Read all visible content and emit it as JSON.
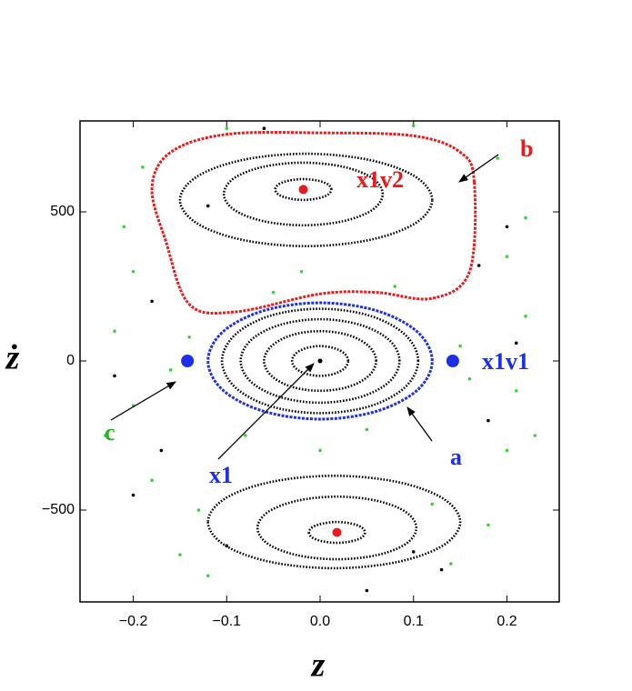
{
  "chart_data": {
    "type": "scatter",
    "x_label": "z",
    "y_label": "ż",
    "xlim": [
      -0.257,
      0.256
    ],
    "ylim": [
      -808,
      805
    ],
    "xticks": [
      {
        "value": -0.2,
        "label": "−0.2"
      },
      {
        "value": -0.1,
        "label": "−0.1"
      },
      {
        "value": 0,
        "label": "0.0"
      },
      0.1,
      0.2
    ],
    "yticks": [
      {
        "value": -500,
        "label": "−500"
      },
      0,
      500
    ],
    "annotations": [
      {
        "text": "b",
        "color": "#e81c1c"
      },
      {
        "text": "x1v2",
        "color": "#e81c1c"
      },
      {
        "text": "x1v1",
        "color": "#1c2ee8"
      },
      {
        "text": "a",
        "color": "#1c2ee8"
      },
      {
        "text": "x1",
        "color": "#1c2ee8"
      },
      {
        "text": "c",
        "color": "#22b422"
      }
    ],
    "series": [
      {
        "mode": "points",
        "color": "#3ad33a",
        "x": [
          -0.2,
          -0.22,
          -0.2,
          -0.18,
          -0.15,
          -0.12,
          0.2,
          0.22,
          0.21,
          0.2,
          0.18,
          0.14,
          -0.19,
          0.19,
          -0.14,
          -0.16,
          0.15,
          0.16,
          -0.05,
          0.05,
          -0.08,
          0.08,
          -0.1,
          0.1,
          -0.23,
          0.23,
          -0.13,
          0.12,
          -0.21,
          0.22,
          0,
          -0.02
        ],
        "values": [
          300,
          100,
          -150,
          -400,
          -650,
          -720,
          350,
          150,
          -100,
          -300,
          -550,
          -680,
          650,
          680,
          80,
          -30,
          50,
          -60,
          230,
          -230,
          -250,
          250,
          780,
          790,
          -250,
          -250,
          -500,
          -480,
          450,
          480,
          -300,
          300
        ]
      },
      {
        "mode": "points",
        "color": "#000000",
        "x": [
          -0.18,
          0.18,
          -0.1,
          0.1,
          -0.22,
          0.21,
          -0.17,
          0.17,
          -0.12,
          0.13,
          -0.2,
          0.2,
          -0.06,
          0.05
        ],
        "values": [
          200,
          -200,
          -620,
          -640,
          -50,
          60,
          -300,
          320,
          520,
          -700,
          -450,
          450,
          780,
          -770
        ]
      },
      {
        "mode": "line",
        "color": "#000000",
        "x": [
          0.03,
          0.026,
          0.015,
          0,
          -0.015,
          -0.026,
          -0.03,
          -0.026,
          -0.015,
          0,
          0.015,
          0.026
        ],
        "values": [
          0,
          25,
          43,
          50,
          43,
          25,
          0,
          -25,
          -43,
          -50,
          -43,
          -25
        ]
      },
      {
        "mode": "line",
        "color": "#000000",
        "x": [
          0.06,
          0.052,
          0.03,
          0,
          -0.03,
          -0.052,
          -0.06,
          -0.052,
          -0.03,
          0,
          0.03,
          0.052
        ],
        "values": [
          0,
          50,
          87,
          100,
          87,
          50,
          0,
          -50,
          -87,
          -100,
          -87,
          -50
        ]
      },
      {
        "mode": "line",
        "color": "#000000",
        "x": [
          0.085,
          0.074,
          0.043,
          0,
          -0.043,
          -0.074,
          -0.085,
          -0.074,
          -0.043,
          0,
          0.043,
          0.074
        ],
        "values": [
          0,
          70,
          121,
          140,
          121,
          70,
          0,
          -70,
          -121,
          -140,
          -121,
          -70
        ]
      },
      {
        "mode": "line",
        "color": "#000000",
        "x": [
          0.105,
          0.091,
          0.053,
          0,
          -0.053,
          -0.091,
          -0.105,
          -0.091,
          -0.053,
          0,
          0.053,
          0.091
        ],
        "values": [
          0,
          88,
          152,
          175,
          152,
          88,
          0,
          -88,
          -152,
          -175,
          -152,
          -88
        ]
      },
      {
        "mode": "line",
        "color": "#1c2ee8",
        "x": [
          0.12,
          0.104,
          0.06,
          0,
          -0.06,
          -0.104,
          -0.12,
          -0.104,
          -0.06,
          0,
          0.06,
          0.104
        ],
        "values": [
          0,
          98,
          169,
          195,
          169,
          98,
          0,
          -98,
          -169,
          -195,
          -169,
          -98
        ]
      },
      {
        "mode": "line",
        "color": "#000000",
        "x": [
          0.012,
          0.008,
          -0.003,
          -0.018,
          -0.033,
          -0.044,
          -0.048,
          -0.044,
          -0.033,
          -0.018,
          -0.003,
          0.008
        ],
        "values": [
          575,
          593,
          605,
          610,
          605,
          593,
          575,
          557,
          545,
          540,
          545,
          557
        ]
      },
      {
        "mode": "line",
        "color": "#000000",
        "x": [
          0.067,
          0.056,
          0.025,
          -0.018,
          -0.061,
          -0.092,
          -0.103,
          -0.092,
          -0.061,
          -0.018,
          0.025,
          0.056
        ],
        "values": [
          560,
          613,
          651,
          665,
          651,
          613,
          560,
          507,
          469,
          455,
          469,
          507
        ]
      },
      {
        "mode": "line",
        "color": "#000000",
        "x": [
          0.12,
          0.102,
          0.053,
          -0.015,
          -0.083,
          -0.132,
          -0.15,
          -0.132,
          -0.083,
          -0.015,
          0.053,
          0.102
        ],
        "values": [
          540,
          618,
          674,
          695,
          674,
          618,
          540,
          462,
          406,
          385,
          406,
          462
        ]
      },
      {
        "mode": "line",
        "color": "#000000",
        "x": [
          -0.012,
          -0.008,
          0.003,
          0.018,
          0.033,
          0.044,
          0.048,
          0.044,
          0.033,
          0.018,
          0.003,
          -0.008
        ],
        "values": [
          -575,
          -593,
          -605,
          -610,
          -605,
          -593,
          -575,
          -557,
          -545,
          -540,
          -545,
          -557
        ]
      },
      {
        "mode": "line",
        "color": "#000000",
        "x": [
          -0.067,
          -0.056,
          -0.025,
          0.018,
          0.061,
          0.092,
          0.103,
          0.092,
          0.061,
          0.018,
          -0.025,
          -0.056
        ],
        "values": [
          -560,
          -613,
          -651,
          -665,
          -651,
          -613,
          -560,
          -507,
          -469,
          -455,
          -469,
          -507
        ]
      },
      {
        "mode": "line",
        "color": "#000000",
        "x": [
          -0.12,
          -0.102,
          -0.053,
          0.015,
          0.083,
          0.132,
          0.15,
          0.132,
          0.083,
          0.015,
          -0.053,
          -0.102
        ],
        "values": [
          -540,
          -618,
          -674,
          -695,
          -674,
          -618,
          -540,
          -462,
          -406,
          -385,
          -406,
          -462
        ]
      },
      {
        "mode": "line",
        "color": "#e81c1c",
        "x": [
          0.165,
          0.15,
          0.1,
          0,
          -0.1,
          -0.16,
          -0.18,
          -0.165,
          -0.14,
          -0.09,
          0,
          0.06,
          0.12,
          0.16
        ],
        "values": [
          600,
          700,
          755,
          765,
          760,
          700,
          580,
          400,
          190,
          165,
          225,
          230,
          210,
          300
        ]
      },
      {
        "mode": "points",
        "size": 7,
        "color": "#1c2ee8",
        "x": [
          -0.142,
          0.142
        ],
        "values": [
          0,
          0
        ]
      },
      {
        "mode": "points",
        "size": 5,
        "color": "#e81c1c",
        "x": [
          -0.018,
          0.018
        ],
        "values": [
          575,
          -575
        ]
      },
      {
        "mode": "points",
        "size": 2.5,
        "color": "#000000",
        "x": [
          0
        ],
        "values": [
          0
        ]
      }
    ]
  }
}
